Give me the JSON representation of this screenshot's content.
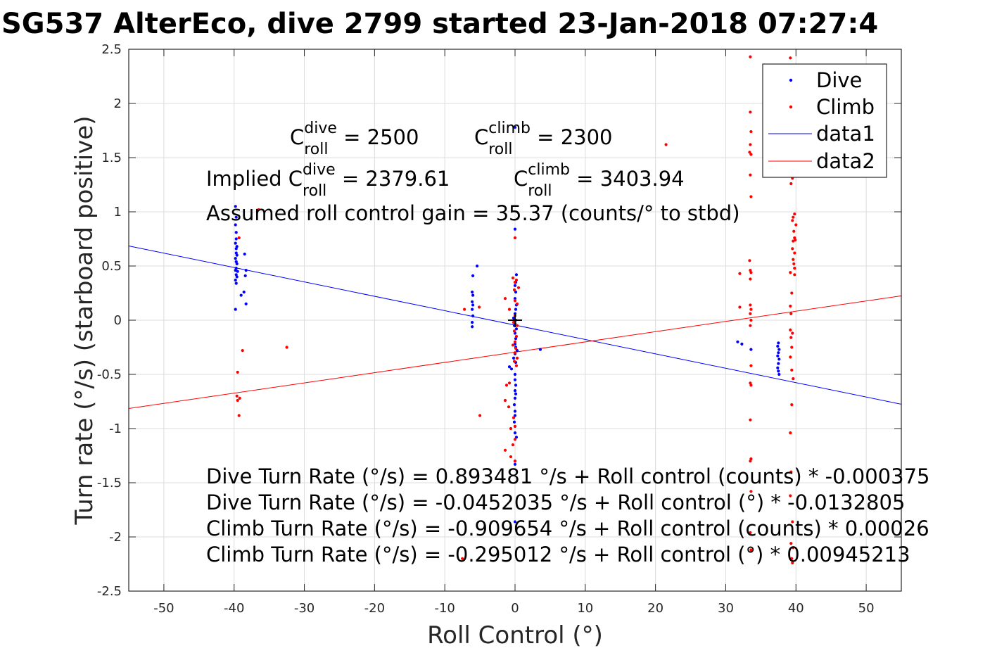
{
  "chart_data": {
    "type": "scatter",
    "title": "SG537 AlterEco, dive 2799 started 23-Jan-2018 07:27:4",
    "xlabel": "Roll Control (°)",
    "ylabel": "Turn rate (°/s) (starboard positive)",
    "xlim": [
      -55,
      55
    ],
    "ylim": [
      -2.5,
      2.5
    ],
    "xticks": [
      -50,
      -40,
      -30,
      -20,
      -10,
      0,
      10,
      20,
      30,
      40,
      50
    ],
    "yticks": [
      -2.5,
      -2,
      -1.5,
      -1,
      -0.5,
      0,
      0.5,
      1,
      1.5,
      2,
      2.5
    ],
    "grid": true,
    "legend_position": "top-right",
    "legend": [
      "Dive",
      "Climb",
      "data1",
      "data2"
    ],
    "colors": {
      "dive": "#0000ff",
      "climb": "#ff0000",
      "data1": "#0000ff",
      "data2": "#ff0000"
    },
    "series": [
      {
        "name": "Dive",
        "kind": "points",
        "points": [
          [
            -39.8,
            1.05
          ],
          [
            -39.7,
            0.95
          ],
          [
            -39.8,
            0.88
          ],
          [
            -39.7,
            0.81
          ],
          [
            -39.7,
            0.75
          ],
          [
            -39.8,
            0.71
          ],
          [
            -39.6,
            0.68
          ],
          [
            -39.7,
            0.66
          ],
          [
            -39.7,
            0.62
          ],
          [
            -39.6,
            0.6
          ],
          [
            -39.8,
            0.57
          ],
          [
            -39.7,
            0.54
          ],
          [
            -39.6,
            0.52
          ],
          [
            -39.7,
            0.48
          ],
          [
            -39.8,
            0.46
          ],
          [
            -39.5,
            0.45
          ],
          [
            -39.7,
            0.42
          ],
          [
            -39.6,
            0.4
          ],
          [
            -39.8,
            0.37
          ],
          [
            -39.7,
            0.34
          ],
          [
            -38.5,
            0.61
          ],
          [
            -38.3,
            0.46
          ],
          [
            -38.4,
            0.41
          ],
          [
            -38.6,
            0.26
          ],
          [
            -39.0,
            0.23
          ],
          [
            -38.3,
            0.15
          ],
          [
            -39.8,
            0.1
          ],
          [
            -6.0,
            0.41
          ],
          [
            -5.4,
            0.5
          ],
          [
            -6.1,
            0.26
          ],
          [
            -6.0,
            0.23
          ],
          [
            -6.1,
            0.17
          ],
          [
            -6.0,
            0.14
          ],
          [
            -6.1,
            0.1
          ],
          [
            -6.0,
            0.04
          ],
          [
            -6.1,
            -0.02
          ],
          [
            -6.1,
            -0.06
          ],
          [
            0.0,
            1.78
          ],
          [
            0.0,
            0.84
          ],
          [
            0.2,
            0.42
          ],
          [
            0.1,
            0.35
          ],
          [
            0.0,
            0.32
          ],
          [
            0.1,
            0.26
          ],
          [
            0.0,
            0.2
          ],
          [
            0.2,
            0.14
          ],
          [
            0.1,
            0.1
          ],
          [
            0.0,
            0.06
          ],
          [
            -0.2,
            0.02
          ],
          [
            0.1,
            0.0
          ],
          [
            0.0,
            -0.03
          ],
          [
            -0.1,
            -0.05
          ],
          [
            0.2,
            -0.08
          ],
          [
            0.0,
            -0.12
          ],
          [
            0.1,
            -0.17
          ],
          [
            0.0,
            -0.22
          ],
          [
            0.1,
            -0.25
          ],
          [
            0.3,
            -0.28
          ],
          [
            0.0,
            -0.31
          ],
          [
            -0.2,
            -0.35
          ],
          [
            0.1,
            -0.39
          ],
          [
            -0.8,
            -0.43
          ],
          [
            -0.5,
            -0.45
          ],
          [
            0.0,
            -0.5
          ],
          [
            0.0,
            -0.55
          ],
          [
            0.1,
            -0.6
          ],
          [
            0.0,
            -0.65
          ],
          [
            0.1,
            -0.68
          ],
          [
            0.0,
            -0.72
          ],
          [
            -0.1,
            -0.78
          ],
          [
            0.0,
            -0.84
          ],
          [
            0.0,
            -0.88
          ],
          [
            -0.1,
            -0.94
          ],
          [
            0.0,
            -0.98
          ],
          [
            0.0,
            -1.04
          ],
          [
            0.2,
            -1.08
          ],
          [
            0.0,
            -1.3
          ],
          [
            0.0,
            -1.33
          ],
          [
            0.0,
            -1.86
          ],
          [
            3.6,
            -0.27
          ],
          [
            31.7,
            -0.2
          ],
          [
            32.3,
            -0.22
          ],
          [
            37.5,
            -0.21
          ],
          [
            37.4,
            -0.24
          ],
          [
            37.6,
            -0.27
          ],
          [
            37.5,
            -0.3
          ],
          [
            37.4,
            -0.33
          ],
          [
            37.6,
            -0.36
          ],
          [
            37.5,
            -0.4
          ],
          [
            37.4,
            -0.44
          ],
          [
            37.5,
            -0.47
          ],
          [
            37.6,
            -0.5
          ],
          [
            33.6,
            -0.27
          ]
        ]
      },
      {
        "name": "Climb",
        "kind": "points",
        "points": [
          [
            -36.5,
            1.02
          ],
          [
            -39.3,
            0.76
          ],
          [
            -38.8,
            -0.28
          ],
          [
            -32.5,
            -0.25
          ],
          [
            -39.5,
            -0.48
          ],
          [
            -39.6,
            -0.7
          ],
          [
            -39.2,
            -0.72
          ],
          [
            -39.5,
            -0.74
          ],
          [
            -39.3,
            -0.88
          ],
          [
            -7.2,
            0.1
          ],
          [
            -5.1,
            0.12
          ],
          [
            -5.0,
            -0.88
          ],
          [
            -7.5,
            -2.2
          ],
          [
            -1.4,
            -1.2
          ],
          [
            21.5,
            1.62
          ],
          [
            0.0,
            0.76
          ],
          [
            -0.3,
            0.39
          ],
          [
            0.2,
            0.37
          ],
          [
            0.0,
            0.35
          ],
          [
            0.5,
            0.3
          ],
          [
            -0.1,
            0.28
          ],
          [
            -1.4,
            0.2
          ],
          [
            0.0,
            0.18
          ],
          [
            0.3,
            0.15
          ],
          [
            -0.8,
            0.1
          ],
          [
            0.0,
            0.04
          ],
          [
            -0.2,
            -0.02
          ],
          [
            0.3,
            -0.05
          ],
          [
            -0.1,
            -0.1
          ],
          [
            0.2,
            -0.15
          ],
          [
            0.0,
            -0.2
          ],
          [
            -0.3,
            -0.23
          ],
          [
            0.1,
            -0.26
          ],
          [
            0.0,
            -0.3
          ],
          [
            0.3,
            -0.35
          ],
          [
            -0.1,
            -0.38
          ],
          [
            0.2,
            -0.42
          ],
          [
            -1.2,
            -0.6
          ],
          [
            -0.8,
            -0.58
          ],
          [
            -1.4,
            -0.74
          ],
          [
            -0.9,
            -0.8
          ],
          [
            -0.2,
            -0.9
          ],
          [
            0.0,
            -0.98
          ],
          [
            -0.6,
            -1.0
          ],
          [
            0.0,
            -1.1
          ],
          [
            -0.3,
            -1.15
          ],
          [
            -0.6,
            -1.26
          ],
          [
            0.0,
            -1.3
          ],
          [
            32.0,
            0.43
          ],
          [
            32.0,
            0.12
          ],
          [
            33.5,
            2.43
          ],
          [
            33.5,
            1.92
          ],
          [
            33.6,
            1.74
          ],
          [
            33.5,
            1.62
          ],
          [
            33.4,
            1.55
          ],
          [
            33.6,
            1.53
          ],
          [
            33.5,
            1.34
          ],
          [
            33.6,
            1.14
          ],
          [
            33.4,
            0.55
          ],
          [
            33.5,
            0.46
          ],
          [
            33.6,
            0.44
          ],
          [
            33.5,
            0.38
          ],
          [
            33.5,
            0.14
          ],
          [
            33.6,
            0.1
          ],
          [
            33.5,
            0.06
          ],
          [
            33.6,
            0.0
          ],
          [
            33.5,
            -0.05
          ],
          [
            33.6,
            -0.42
          ],
          [
            33.5,
            -0.58
          ],
          [
            33.6,
            -0.6
          ],
          [
            33.5,
            -0.92
          ],
          [
            33.6,
            -1.28
          ],
          [
            33.5,
            -1.3
          ],
          [
            33.6,
            -1.58
          ],
          [
            33.5,
            -1.96
          ],
          [
            33.6,
            -2.12
          ],
          [
            39.2,
            2.42
          ],
          [
            39.5,
            1.31
          ],
          [
            39.3,
            1.26
          ],
          [
            39.8,
            0.98
          ],
          [
            39.6,
            0.95
          ],
          [
            39.5,
            0.92
          ],
          [
            40.0,
            0.88
          ],
          [
            39.7,
            0.82
          ],
          [
            39.8,
            0.76
          ],
          [
            39.9,
            0.74
          ],
          [
            39.6,
            0.73
          ],
          [
            39.5,
            0.66
          ],
          [
            39.8,
            0.62
          ],
          [
            39.6,
            0.56
          ],
          [
            39.7,
            0.52
          ],
          [
            39.8,
            0.48
          ],
          [
            39.2,
            0.44
          ],
          [
            39.8,
            0.42
          ],
          [
            39.4,
            0.25
          ],
          [
            39.2,
            0.13
          ],
          [
            39.3,
            0.06
          ],
          [
            39.2,
            -0.09
          ],
          [
            39.5,
            -0.12
          ],
          [
            39.3,
            -0.16
          ],
          [
            39.4,
            -0.25
          ],
          [
            39.2,
            -0.34
          ],
          [
            39.4,
            -0.46
          ],
          [
            39.6,
            -0.54
          ],
          [
            39.4,
            -0.78
          ],
          [
            39.2,
            -1.04
          ],
          [
            39.3,
            -1.4
          ],
          [
            39.2,
            -1.62
          ],
          [
            39.5,
            -1.86
          ],
          [
            39.3,
            -2.06
          ],
          [
            39.6,
            -2.1
          ],
          [
            39.4,
            -2.2
          ],
          [
            39.5,
            -2.24
          ]
        ]
      },
      {
        "name": "data1",
        "kind": "line",
        "x": [
          -55,
          55
        ],
        "y": [
          0.6852,
          -0.7756
        ]
      },
      {
        "name": "data2",
        "kind": "line",
        "x": [
          -55,
          55
        ],
        "y": [
          -0.8149,
          0.2248
        ]
      }
    ],
    "annotations": {
      "c_dive": {
        "pre": "C",
        "sup": "dive",
        "sub": "roll",
        "post": " = 2500"
      },
      "c_climb": {
        "pre": "C",
        "sup": "climb",
        "sub": "roll",
        "post": " = 2300"
      },
      "implied_dive": {
        "pre": "Implied C",
        "sup": "dive",
        "sub": "roll",
        "post": " = 2379.61"
      },
      "implied_climb": {
        "pre": "C",
        "sup": "climb",
        "sub": "roll",
        "post": " = 3403.94"
      },
      "gain": "Assumed roll control gain = 35.37 (counts/° to stbd)",
      "fits": [
        "Dive Turn Rate (°/s) = 0.893481 °/s + Roll control (counts) * -0.000375",
        "Dive Turn Rate (°/s) = -0.0452035 °/s + Roll control (°) * -0.0132805",
        "Climb Turn Rate (°/s) = -0.909654 °/s + Roll control (counts) * 0.00026",
        "Climb Turn Rate (°/s) = -0.295012 °/s + Roll control (°) * 0.00945213"
      ]
    },
    "center_marker": [
      0,
      0
    ]
  }
}
